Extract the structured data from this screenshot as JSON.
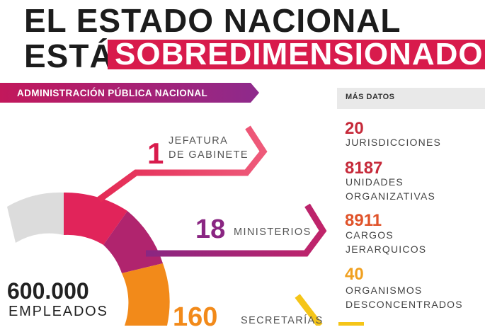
{
  "header": {
    "line1": "EL ESTADO NACIONAL",
    "line2_prefix": "ESTÁ",
    "line2_highlight": "SOBREDIMENSIONADO"
  },
  "section_label": "ADMINISTRACIÓN PÚBLICA NACIONAL",
  "side_panel": {
    "title": "MÁS DATOS",
    "items": [
      {
        "value": "20",
        "label_lines": [
          "JURISDICCIONES"
        ],
        "color": "#c62a3a"
      },
      {
        "value": "8187",
        "label_lines": [
          "UNIDADES",
          "ORGANIZATIVAS"
        ],
        "color": "#c62a3a"
      },
      {
        "value": "8911",
        "label_lines": [
          "CARGOS",
          "JERARQUICOS"
        ],
        "color": "#e0532a"
      },
      {
        "value": "40",
        "label_lines": [
          "ORGANISMOS",
          "DESCONCENTRADOS"
        ],
        "color": "#f0a020"
      }
    ]
  },
  "main": {
    "jefatura": {
      "value": "1",
      "lines": [
        "JEFATURA",
        "DE GABINETE"
      ],
      "color": "#d81b4c"
    },
    "ministerios": {
      "value": "18",
      "label": "MINISTERIOS",
      "color": "#8a2682"
    },
    "secretarias": {
      "value": "160",
      "label": "SECRETARÍAS",
      "color": "#f28a1a"
    },
    "empleados": {
      "value": "600.000",
      "label": "EMPLEADOS"
    }
  },
  "colors": {
    "highlight": "#d81b4c",
    "pink": "#e1245a",
    "purple": "#8a2682",
    "orange": "#f28a1a",
    "yellow": "#f5c518",
    "grey": "#dcdcdc"
  }
}
